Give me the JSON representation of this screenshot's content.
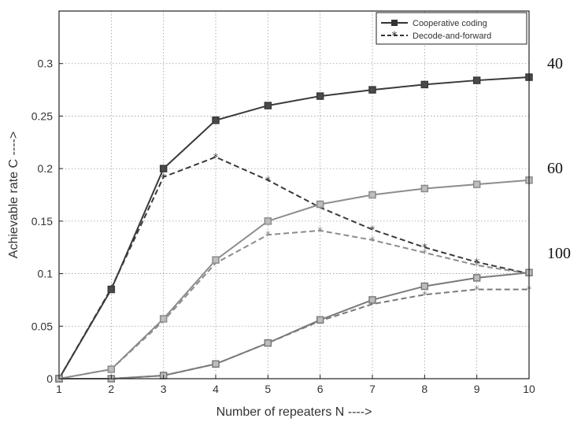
{
  "chart_data": {
    "type": "line",
    "title": "",
    "xlabel": "Number of repeaters N ---->",
    "ylabel": "Achievable rate C ---->",
    "xlim": [
      1,
      10
    ],
    "ylim": [
      0,
      0.35
    ],
    "x": [
      1,
      2,
      3,
      4,
      5,
      6,
      7,
      8,
      9,
      10
    ],
    "xticks": [
      "1",
      "2",
      "3",
      "4",
      "5",
      "6",
      "7",
      "8",
      "9",
      "10"
    ],
    "yticks": [
      "0",
      "0.05",
      "0.1",
      "0.15",
      "0.2",
      "0.25",
      "0.3"
    ],
    "grid": true,
    "legend_position": "top-right",
    "legend": [
      {
        "label": "Cooperative coding",
        "style": "solid",
        "marker": "square"
      },
      {
        "label": "Decode-and-forward",
        "style": "dashed",
        "marker": "star"
      }
    ],
    "groups": [
      {
        "label": "40",
        "color": "#3a3a3a",
        "cooperative": [
          0.0,
          0.085,
          0.2,
          0.246,
          0.26,
          0.269,
          0.275,
          0.28,
          0.284,
          0.287
        ],
        "decode_forward": [
          0.0,
          0.086,
          0.192,
          0.211,
          0.189,
          0.163,
          0.142,
          0.125,
          0.111,
          0.1
        ]
      },
      {
        "label": "60",
        "color": "#8c8c8c",
        "cooperative": [
          0.0,
          0.009,
          0.057,
          0.113,
          0.15,
          0.166,
          0.175,
          0.181,
          0.185,
          0.189
        ],
        "decode_forward": [
          0.0,
          0.009,
          0.055,
          0.11,
          0.137,
          0.141,
          0.132,
          0.12,
          0.108,
          0.1
        ]
      },
      {
        "label": "100",
        "color": "#7a7a7a",
        "cooperative": [
          0.0,
          0.0,
          0.003,
          0.014,
          0.034,
          0.056,
          0.075,
          0.088,
          0.096,
          0.101
        ],
        "decode_forward": [
          0.0,
          0.0,
          0.003,
          0.014,
          0.034,
          0.055,
          0.071,
          0.08,
          0.085,
          0.085
        ]
      }
    ]
  }
}
